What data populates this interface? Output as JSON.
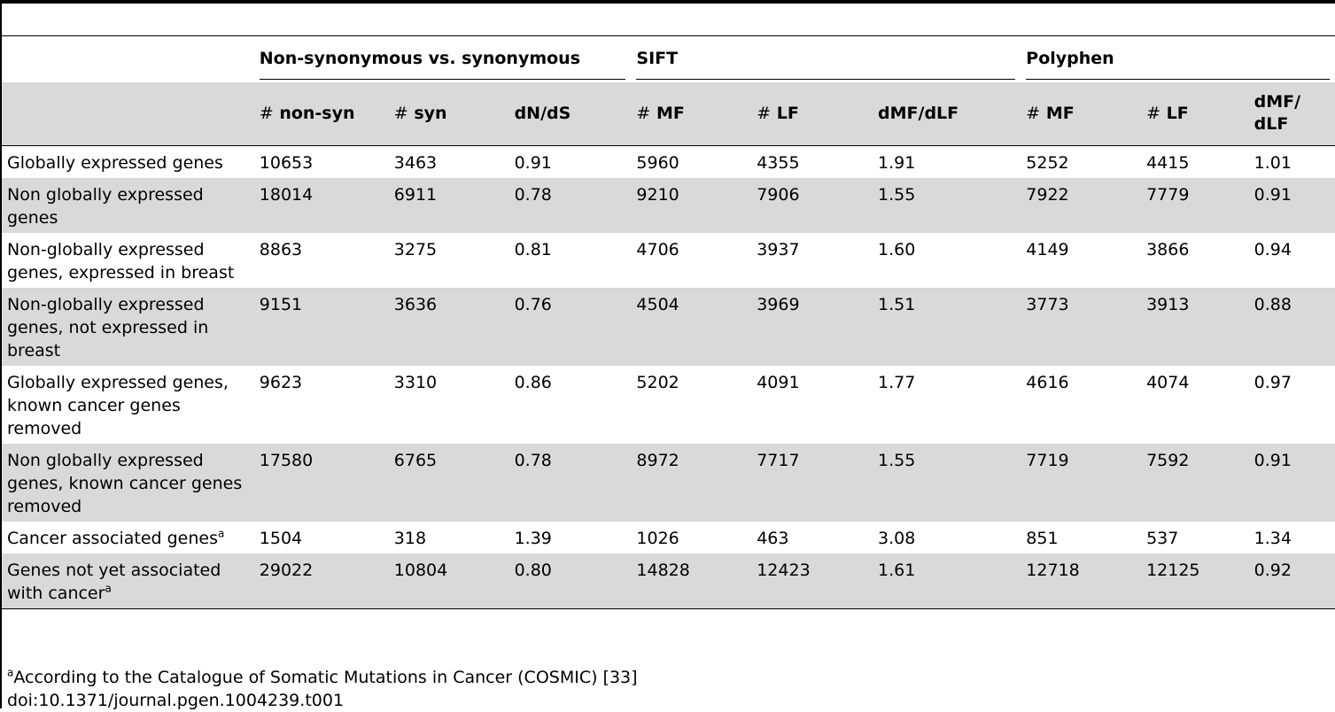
{
  "table": {
    "group_headers": {
      "nonsyn": "Non-synonymous vs. synonymous",
      "sift": "SIFT",
      "polyphen": "Polyphen"
    },
    "columns": [
      {
        "hash": "#",
        "label": "non-syn"
      },
      {
        "hash": "#",
        "label": "syn"
      },
      {
        "hash": "",
        "label": "dN/dS"
      },
      {
        "hash": "#",
        "label": "MF"
      },
      {
        "hash": "#",
        "label": "LF"
      },
      {
        "hash": "",
        "label": "dMF/dLF"
      },
      {
        "hash": "#",
        "label": "MF"
      },
      {
        "hash": "#",
        "label": "LF"
      },
      {
        "hash": "",
        "label": "dMF/ dLF"
      }
    ],
    "rows": [
      {
        "label": "Globally expressed genes",
        "sup": "",
        "values": [
          "10653",
          "3463",
          "0.91",
          "5960",
          "4355",
          "1.91",
          "5252",
          "4415",
          "1.01"
        ]
      },
      {
        "label": "Non globally expressed genes",
        "sup": "",
        "values": [
          "18014",
          "6911",
          "0.78",
          "9210",
          "7906",
          "1.55",
          "7922",
          "7779",
          "0.91"
        ]
      },
      {
        "label": "Non-globally expressed genes, expressed in breast",
        "sup": "",
        "values": [
          "8863",
          "3275",
          "0.81",
          "4706",
          "3937",
          "1.60",
          "4149",
          "3866",
          "0.94"
        ]
      },
      {
        "label": "Non-globally expressed genes, not expressed in breast",
        "sup": "",
        "values": [
          "9151",
          "3636",
          "0.76",
          "4504",
          "3969",
          "1.51",
          "3773",
          "3913",
          "0.88"
        ]
      },
      {
        "label": "Globally expressed genes, known cancer genes removed",
        "sup": "",
        "values": [
          "9623",
          "3310",
          "0.86",
          "5202",
          "4091",
          "1.77",
          "4616",
          "4074",
          "0.97"
        ]
      },
      {
        "label": "Non globally expressed genes, known cancer genes removed",
        "sup": "",
        "values": [
          "17580",
          "6765",
          "0.78",
          "8972",
          "7717",
          "1.55",
          "7719",
          "7592",
          "0.91"
        ]
      },
      {
        "label": "Cancer associated genes",
        "sup": "a",
        "values": [
          "1504",
          "318",
          "1.39",
          "1026",
          "463",
          "3.08",
          "851",
          "537",
          "1.34"
        ]
      },
      {
        "label": "Genes not yet associated with cancer",
        "sup": "a",
        "values": [
          "29022",
          "10804",
          "0.80",
          "14828",
          "12423",
          "1.61",
          "12718",
          "12125",
          "0.92"
        ]
      }
    ]
  },
  "footnotes": {
    "note_marker": "a",
    "note_text": "According to the Catalogue of Somatic Mutations in Cancer (COSMIC) [33]",
    "doi": "doi:10.1371/journal.pgen.1004239.t001"
  }
}
